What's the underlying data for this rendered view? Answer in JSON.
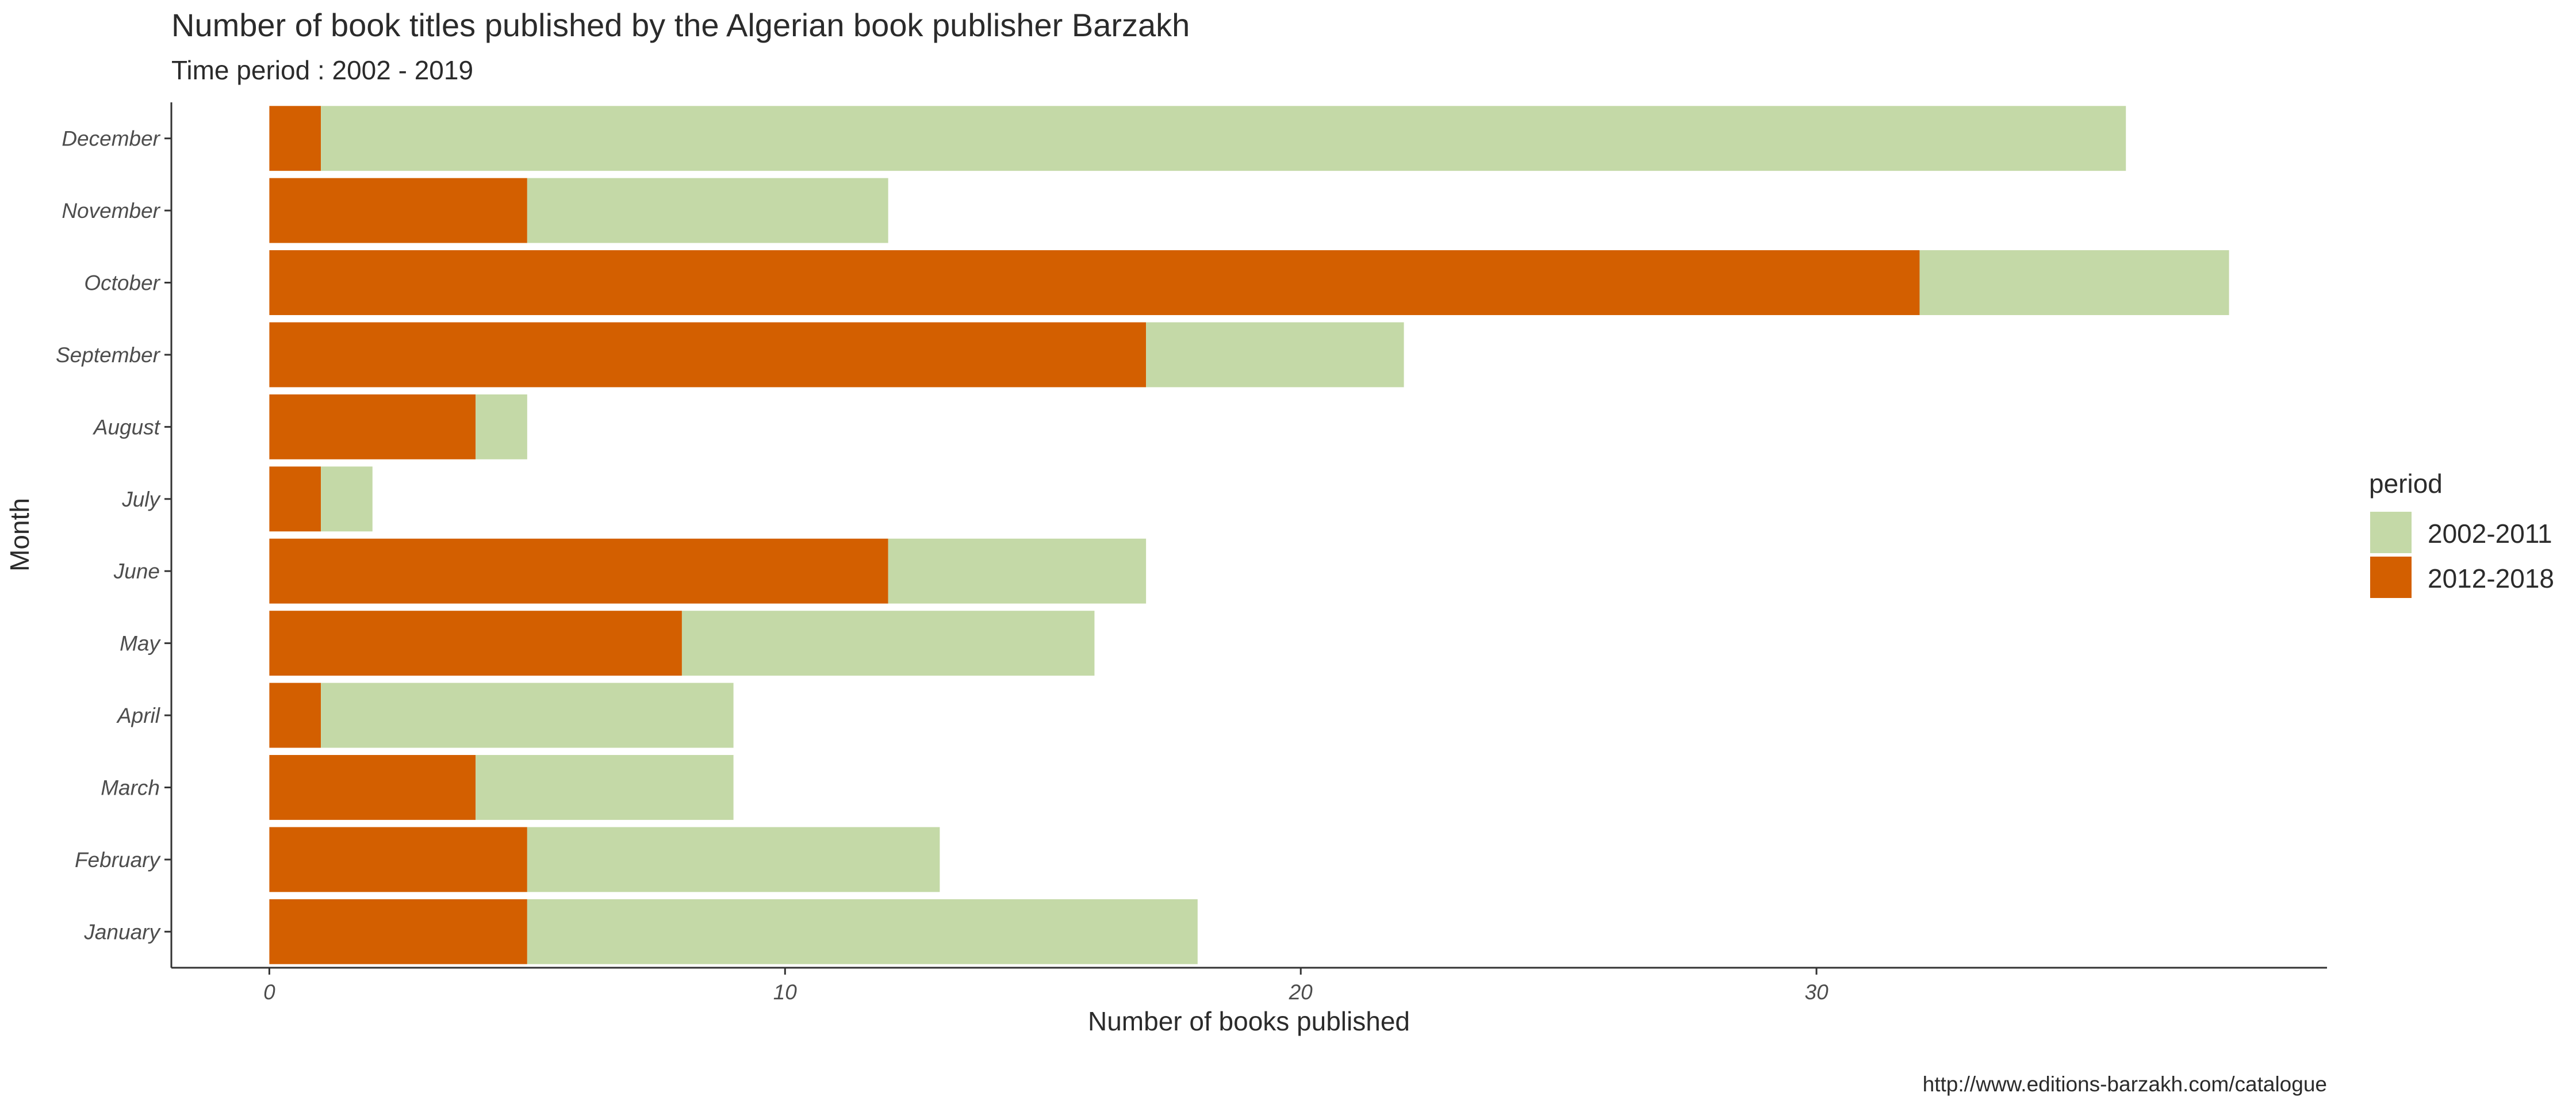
{
  "chart_data": {
    "type": "bar",
    "orientation": "horizontal",
    "stacked": true,
    "title": "Number of book titles published by the Algerian book publisher Barzakh",
    "subtitle": "Time period : 2002 - 2019",
    "xlabel": "Number of books published",
    "ylabel": "Month",
    "caption": "http://www.editions-barzakh.com/catalogue",
    "categories": [
      "January",
      "February",
      "March",
      "April",
      "May",
      "June",
      "July",
      "August",
      "September",
      "October",
      "November",
      "December"
    ],
    "series": [
      {
        "name": "2012-2018",
        "color": "#d35f00",
        "values": [
          5,
          5,
          4,
          1,
          8,
          12,
          1,
          4,
          17,
          32,
          5,
          1
        ]
      },
      {
        "name": "2002-2011",
        "color": "#c4d9a7",
        "values": [
          13,
          8,
          5,
          8,
          8,
          5,
          1,
          1,
          5,
          6,
          7,
          35
        ]
      }
    ],
    "xticks": [
      0,
      10,
      20,
      30
    ],
    "xlim": [
      -1.9,
      39.9
    ],
    "grid": false,
    "legend": {
      "title": "period",
      "position": "right",
      "entries": [
        {
          "label": "2002-2011",
          "color": "#c4d9a7"
        },
        {
          "label": "2012-2018",
          "color": "#d35f00"
        }
      ]
    }
  }
}
